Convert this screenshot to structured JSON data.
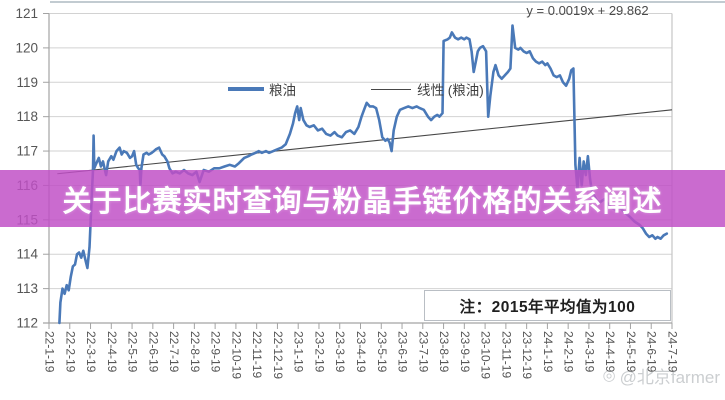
{
  "banner": {
    "title": "关于比赛实时查询与粉晶手链价格的关系阐述",
    "bg_color": "#c04fc6"
  },
  "watermark": {
    "icon": "weibo-eye-icon",
    "text": "@北京farmer"
  },
  "chart_data": {
    "type": "line",
    "equation": "y = 0.0019x + 29.862",
    "note": "注：2015年平均值为100",
    "ylim": [
      112,
      121
    ],
    "yticks": [
      112,
      113,
      114,
      115,
      116,
      117,
      118,
      119,
      120,
      121
    ],
    "grid": true,
    "legend_position": "top-center",
    "x_labels": [
      "22-1-19",
      "22-2-19",
      "22-3-19",
      "22-4-19",
      "22-5-19",
      "22-6-19",
      "22-7-19",
      "22-8-19",
      "22-9-19",
      "22-10-19",
      "22-11-19",
      "22-12-19",
      "23-1-19",
      "23-2-19",
      "23-3-19",
      "23-4-19",
      "23-5-19",
      "23-6-19",
      "23-7-19",
      "23-8-19",
      "23-9-19",
      "23-10-19",
      "23-11-19",
      "23-12-19",
      "24-1-19",
      "24-2-19",
      "24-3-19",
      "24-4-19",
      "24-5-19",
      "24-6-19",
      "24-7-19"
    ],
    "legend": [
      {
        "name": "粮油",
        "color": "#4a79b8",
        "style": "thick"
      },
      {
        "name": "线性 (粮油)",
        "color": "#474747",
        "style": "thin"
      }
    ],
    "series": [
      {
        "name": "粮油",
        "color": "#4a79b8",
        "width": 2.6,
        "points": [
          [
            0,
            112.0
          ],
          [
            0.05,
            112.6
          ],
          [
            0.15,
            113.0
          ],
          [
            0.25,
            112.85
          ],
          [
            0.35,
            113.1
          ],
          [
            0.45,
            112.95
          ],
          [
            0.55,
            113.35
          ],
          [
            0.65,
            113.65
          ],
          [
            0.75,
            113.7
          ],
          [
            0.85,
            114.0
          ],
          [
            0.95,
            114.05
          ],
          [
            1.05,
            113.9
          ],
          [
            1.15,
            114.1
          ],
          [
            1.25,
            113.85
          ],
          [
            1.35,
            113.6
          ],
          [
            1.45,
            114.2
          ],
          [
            1.55,
            115.6
          ],
          [
            1.62,
            116.45
          ],
          [
            1.65,
            117.45
          ],
          [
            1.68,
            116.5
          ],
          [
            1.75,
            116.6
          ],
          [
            1.9,
            116.8
          ],
          [
            2.0,
            116.55
          ],
          [
            2.1,
            116.7
          ],
          [
            2.25,
            116.3
          ],
          [
            2.35,
            116.7
          ],
          [
            2.5,
            116.85
          ],
          [
            2.6,
            116.75
          ],
          [
            2.75,
            117.0
          ],
          [
            2.9,
            117.1
          ],
          [
            3.0,
            116.9
          ],
          [
            3.1,
            117.0
          ],
          [
            3.25,
            116.95
          ],
          [
            3.4,
            116.8
          ],
          [
            3.5,
            116.85
          ],
          [
            3.6,
            117.0
          ],
          [
            3.7,
            116.6
          ],
          [
            3.8,
            116.5
          ],
          [
            3.87,
            116.45
          ],
          [
            3.9,
            116.0
          ],
          [
            3.95,
            116.5
          ],
          [
            4.05,
            116.9
          ],
          [
            4.2,
            116.95
          ],
          [
            4.3,
            116.9
          ],
          [
            4.45,
            116.95
          ],
          [
            4.55,
            117.0
          ],
          [
            4.65,
            117.05
          ],
          [
            4.8,
            117.1
          ],
          [
            4.95,
            116.9
          ],
          [
            5.05,
            116.85
          ],
          [
            5.2,
            116.7
          ],
          [
            5.3,
            116.5
          ],
          [
            5.45,
            116.35
          ],
          [
            5.6,
            116.4
          ],
          [
            5.8,
            116.35
          ],
          [
            6.0,
            116.45
          ],
          [
            6.2,
            116.35
          ],
          [
            6.4,
            116.3
          ],
          [
            6.6,
            116.4
          ],
          [
            6.75,
            116.1
          ],
          [
            6.95,
            116.45
          ],
          [
            7.2,
            116.4
          ],
          [
            7.45,
            116.5
          ],
          [
            7.7,
            116.5
          ],
          [
            7.95,
            116.55
          ],
          [
            8.2,
            116.6
          ],
          [
            8.45,
            116.55
          ],
          [
            8.65,
            116.65
          ],
          [
            8.9,
            116.8
          ],
          [
            9.1,
            116.85
          ],
          [
            9.25,
            116.9
          ],
          [
            9.45,
            116.95
          ],
          [
            9.6,
            117.0
          ],
          [
            9.75,
            116.95
          ],
          [
            9.95,
            117.0
          ],
          [
            10.1,
            116.95
          ],
          [
            10.3,
            117.0
          ],
          [
            10.5,
            117.05
          ],
          [
            10.7,
            117.1
          ],
          [
            10.9,
            117.2
          ],
          [
            11.1,
            117.5
          ],
          [
            11.25,
            117.8
          ],
          [
            11.35,
            118.1
          ],
          [
            11.45,
            118.3
          ],
          [
            11.55,
            117.9
          ],
          [
            11.62,
            118.25
          ],
          [
            11.75,
            117.9
          ],
          [
            11.9,
            117.75
          ],
          [
            12.05,
            117.7
          ],
          [
            12.25,
            117.75
          ],
          [
            12.45,
            117.6
          ],
          [
            12.65,
            117.65
          ],
          [
            12.85,
            117.5
          ],
          [
            13.05,
            117.45
          ],
          [
            13.25,
            117.55
          ],
          [
            13.4,
            117.45
          ],
          [
            13.6,
            117.4
          ],
          [
            13.8,
            117.55
          ],
          [
            14.0,
            117.6
          ],
          [
            14.2,
            117.5
          ],
          [
            14.4,
            117.7
          ],
          [
            14.55,
            118.0
          ],
          [
            14.7,
            118.25
          ],
          [
            14.8,
            118.4
          ],
          [
            14.95,
            118.3
          ],
          [
            15.1,
            118.3
          ],
          [
            15.25,
            118.25
          ],
          [
            15.4,
            117.9
          ],
          [
            15.55,
            117.4
          ],
          [
            15.7,
            117.3
          ],
          [
            15.8,
            117.35
          ],
          [
            15.9,
            117.25
          ],
          [
            16.0,
            117.0
          ],
          [
            16.1,
            117.6
          ],
          [
            16.25,
            118.0
          ],
          [
            16.4,
            118.2
          ],
          [
            16.6,
            118.25
          ],
          [
            16.8,
            118.3
          ],
          [
            17.0,
            118.25
          ],
          [
            17.2,
            118.3
          ],
          [
            17.35,
            118.25
          ],
          [
            17.55,
            118.2
          ],
          [
            17.75,
            118.0
          ],
          [
            17.9,
            117.9
          ],
          [
            18.05,
            118.0
          ],
          [
            18.2,
            118.05
          ],
          [
            18.3,
            118.0
          ],
          [
            18.45,
            118.1
          ],
          [
            18.5,
            120.2
          ],
          [
            18.7,
            120.25
          ],
          [
            18.8,
            120.3
          ],
          [
            18.9,
            120.45
          ],
          [
            19.05,
            120.3
          ],
          [
            19.2,
            120.25
          ],
          [
            19.35,
            120.3
          ],
          [
            19.5,
            120.25
          ],
          [
            19.6,
            120.3
          ],
          [
            19.75,
            120.25
          ],
          [
            19.85,
            119.9
          ],
          [
            19.95,
            119.3
          ],
          [
            20.05,
            119.6
          ],
          [
            20.15,
            119.9
          ],
          [
            20.25,
            120.0
          ],
          [
            20.4,
            120.05
          ],
          [
            20.55,
            119.9
          ],
          [
            20.65,
            118.0
          ],
          [
            20.75,
            118.6
          ],
          [
            20.9,
            119.3
          ],
          [
            21.0,
            119.5
          ],
          [
            21.15,
            119.2
          ],
          [
            21.3,
            119.1
          ],
          [
            21.45,
            119.2
          ],
          [
            21.6,
            119.3
          ],
          [
            21.72,
            119.4
          ],
          [
            21.82,
            120.65
          ],
          [
            21.95,
            120.0
          ],
          [
            22.1,
            119.95
          ],
          [
            22.2,
            120.0
          ],
          [
            22.35,
            119.9
          ],
          [
            22.5,
            119.85
          ],
          [
            22.65,
            119.9
          ],
          [
            22.8,
            119.7
          ],
          [
            22.95,
            119.6
          ],
          [
            23.1,
            119.55
          ],
          [
            23.25,
            119.6
          ],
          [
            23.4,
            119.5
          ],
          [
            23.5,
            119.55
          ],
          [
            23.65,
            119.4
          ],
          [
            23.8,
            119.2
          ],
          [
            23.95,
            119.15
          ],
          [
            24.1,
            119.2
          ],
          [
            24.25,
            119.0
          ],
          [
            24.4,
            118.9
          ],
          [
            24.55,
            119.1
          ],
          [
            24.65,
            119.35
          ],
          [
            24.75,
            119.4
          ],
          [
            24.85,
            116.6
          ],
          [
            24.95,
            115.9
          ],
          [
            25.05,
            116.8
          ],
          [
            25.15,
            116.0
          ],
          [
            25.25,
            116.7
          ],
          [
            25.35,
            116.3
          ],
          [
            25.45,
            116.85
          ],
          [
            25.55,
            116.2
          ],
          [
            25.65,
            115.8
          ],
          [
            25.85,
            115.6
          ],
          [
            26.0,
            115.5
          ],
          [
            26.25,
            115.6
          ],
          [
            26.5,
            115.4
          ],
          [
            26.75,
            115.3
          ],
          [
            27.0,
            115.35
          ],
          [
            27.25,
            115.2
          ],
          [
            27.45,
            115.1
          ],
          [
            27.7,
            114.95
          ],
          [
            27.95,
            114.85
          ],
          [
            28.1,
            114.75
          ],
          [
            28.25,
            114.6
          ],
          [
            28.4,
            114.5
          ],
          [
            28.55,
            114.55
          ],
          [
            28.7,
            114.45
          ],
          [
            28.8,
            114.5
          ],
          [
            28.95,
            114.45
          ],
          [
            29.1,
            114.55
          ],
          [
            29.25,
            114.6
          ]
        ]
      }
    ],
    "trend": {
      "name": "线性 (粮油)",
      "color": "#474747",
      "width": 1.1,
      "points": [
        [
          -0.1,
          116.34
        ],
        [
          29.5,
          118.2
        ]
      ]
    }
  },
  "style": {
    "grid_color": "#d2d2d2",
    "axis_color": "#a3a3a3",
    "border_color": "#c6c6c6",
    "tick_label_color": "#565656"
  }
}
